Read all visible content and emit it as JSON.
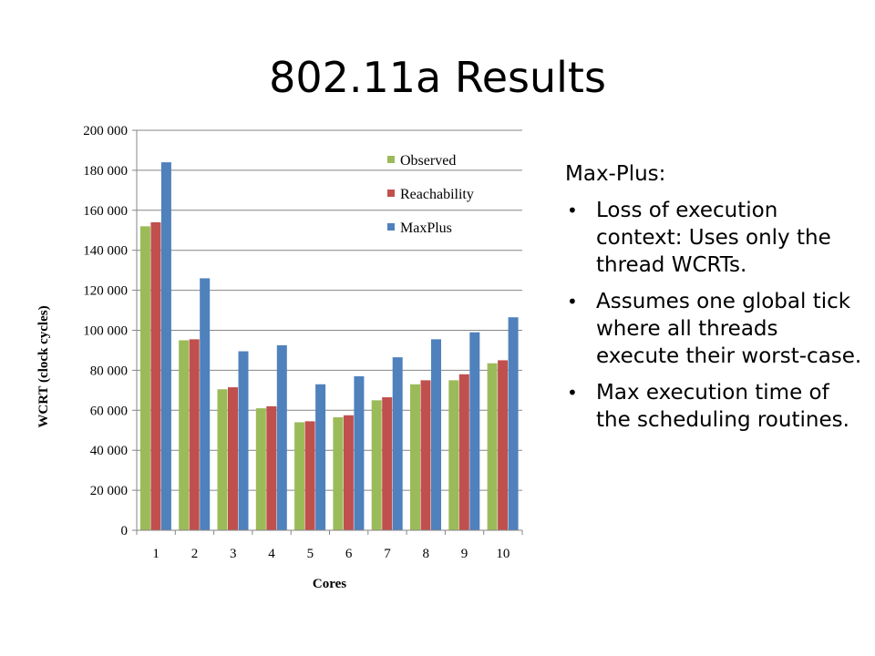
{
  "slide": {
    "title": "802.11a Results"
  },
  "side": {
    "heading": "Max-Plus:",
    "bullets": [
      "Loss of execution context: Uses only the thread WCRTs.",
      "Assumes one global tick where all threads execute their worst-case.",
      "Max execution time of the scheduling routines."
    ]
  },
  "colors": {
    "observed": "#9bbb59",
    "reachability": "#c0504d",
    "maxplus": "#4f81bd",
    "gridline": "#868686"
  },
  "chart_data": {
    "type": "bar",
    "title": "",
    "xlabel": "Cores",
    "ylabel": "WCRT (clock cycles)",
    "categories": [
      "1",
      "2",
      "3",
      "4",
      "5",
      "6",
      "7",
      "8",
      "9",
      "10"
    ],
    "ylim": [
      0,
      200000
    ],
    "yticks": [
      0,
      20000,
      40000,
      60000,
      80000,
      100000,
      120000,
      140000,
      160000,
      180000,
      200000
    ],
    "ytick_labels": [
      "0",
      "20 000",
      "40 000",
      "60 000",
      "80 000",
      "100 000",
      "120 000",
      "140 000",
      "160 000",
      "180 000",
      "200 000"
    ],
    "grid": true,
    "legend_position": "top-right",
    "series": [
      {
        "name": "Observed",
        "color": "#9bbb59",
        "values": [
          152000,
          95000,
          70500,
          61000,
          54000,
          56500,
          65000,
          73000,
          75000,
          83500
        ]
      },
      {
        "name": "Reachability",
        "color": "#c0504d",
        "values": [
          154000,
          95500,
          71500,
          62000,
          54500,
          57500,
          66500,
          75000,
          78000,
          85000
        ]
      },
      {
        "name": "MaxPlus",
        "color": "#4f81bd",
        "values": [
          184000,
          126000,
          89500,
          92500,
          73000,
          77000,
          86500,
          95500,
          99000,
          106500
        ]
      }
    ]
  }
}
